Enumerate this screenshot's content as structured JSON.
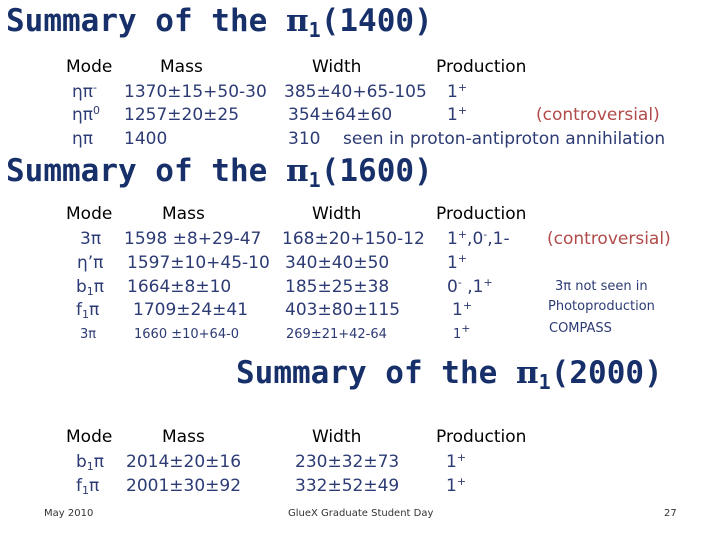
{
  "sections": [
    {
      "title": {
        "prefix": "Summary of the ",
        "symbol": "π",
        "sub": "1",
        "suffix": "(1400)"
      },
      "headers": {
        "mode": "Mode",
        "mass": "Mass",
        "width": "Width",
        "production": "Production"
      },
      "rows": [
        {
          "mode_base": "ηπ",
          "mode_sup": "-",
          "mass": "1370±15+50-30",
          "width": "385±40+65-105",
          "prod": "1",
          "prod_sup": "+",
          "note": "(controversial)"
        },
        {
          "mode_base": "ηπ",
          "mode_sup": "0",
          "mass": "1257±20±25",
          "width": "354±64±60",
          "prod": "1",
          "prod_sup": "+"
        },
        {
          "mode_base": "ηπ",
          "mass": "1400",
          "width": "310",
          "prod_text": "seen in proton-antiproton annihilation"
        }
      ]
    },
    {
      "title": {
        "prefix": "Summary of the ",
        "symbol": "π",
        "sub": "1",
        "suffix": "(1600)"
      },
      "headers": {
        "mode": "Mode",
        "mass": "Mass",
        "width": "Width",
        "production": "Production"
      },
      "rows": [
        {
          "mode": "3π",
          "mass": "1598 ±8+29-47",
          "width": "168±20+150-12",
          "prod_parts": [
            "1",
            "+",
            ",0",
            "-",
            ",1-"
          ],
          "note": "(controversial)"
        },
        {
          "mode": "η’π",
          "mass": "1597±10+45-10",
          "width": "340±40±50",
          "prod": "1",
          "prod_sup": "+"
        },
        {
          "mode_base": "b",
          "mode_sub": "1",
          "mode_tail": "π",
          "mass": "1664±8±10",
          "width": "185±25±38",
          "prod_parts": [
            "0",
            "-",
            " ,1",
            "+"
          ]
        },
        {
          "mode_base": "f",
          "mode_sub": "1",
          "mode_tail": "π",
          "mass": "1709±24±41",
          "width": "403±80±115",
          "prod": "1",
          "prod_sup": "+"
        },
        {
          "mode": "3π",
          "mass": "1660 ±10+64-0",
          "width": "269±21+42-64",
          "prod": "1",
          "prod_sup": "+"
        }
      ],
      "side_notes": [
        "3π not seen in",
        "Photoproduction",
        "COMPASS"
      ]
    },
    {
      "title": {
        "prefix": "Summary of the ",
        "symbol": "π",
        "sub": "1",
        "suffix": "(2000)"
      },
      "headers": {
        "mode": "Mode",
        "mass": "Mass",
        "width": "Width",
        "production": "Production"
      },
      "rows": [
        {
          "mode_base": "b",
          "mode_sub": "1",
          "mode_tail": "π",
          "mass": "2014±20±16",
          "width": "230±32±73",
          "prod": "1",
          "prod_sup": "+"
        },
        {
          "mode_base": "f",
          "mode_sub": "1",
          "mode_tail": "π",
          "mass": "2001±30±92",
          "width": "332±52±49",
          "prod": "1",
          "prod_sup": "+"
        }
      ]
    }
  ],
  "footer": {
    "date": "May 2010",
    "event": "GlueX Graduate Student Day",
    "page": "27"
  },
  "colors": {
    "title": "#17306a",
    "body_text": "#2d3b74",
    "header": "#000000",
    "emphasis": "#b04b49"
  }
}
